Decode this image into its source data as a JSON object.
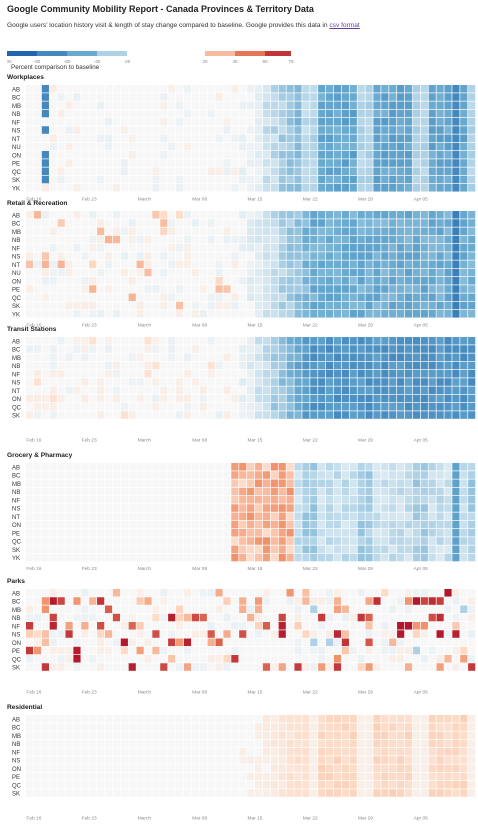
{
  "header": {
    "title": "Google Community Mobility Report - Canada Provinces & Territory Data",
    "subtitle_text": "Google users' location history visit & length of stay change compared to baseline. Google provides this data in ",
    "subtitle_link": "csv format"
  },
  "legend": {
    "title": "Percent comparison to baseline",
    "ticks": [
      "-100",
      "-80",
      "-60",
      "-40",
      "-20",
      "20",
      "40",
      "60",
      "75"
    ],
    "colors": {
      "neg_strong": "#2166ac",
      "neg_mid": "#67a9cf",
      "neg_light": "#d1e5f0",
      "neutral": "#f7f7f7",
      "pos_light": "#fddbc7",
      "pos_mid": "#ef8a62",
      "pos_strong": "#b2182b"
    }
  },
  "chart_data": [
    {
      "type": "heatmap",
      "title": "Workplaces",
      "rows": [
        "AB",
        "BC",
        "MB",
        "NB",
        "NF",
        "NS",
        "NT",
        "NU",
        "ON",
        "PE",
        "QC",
        "SK",
        "YK"
      ],
      "x_ticks": [
        "Feb 16",
        "Feb 23",
        "March",
        "Mar 08",
        "Mar 15",
        "Mar 22",
        "Mar 29",
        "Apr 05"
      ],
      "x_range": [
        "Feb 15",
        "Apr 11"
      ],
      "value_range": [
        -100,
        75
      ],
      "pattern": "near 0 until about Mar 12, then declining to roughly -40 to -60 after Mar 22; weekend holiday cells near -70"
    },
    {
      "type": "heatmap",
      "title": "Retail & Recreation",
      "rows": [
        "AB",
        "BC",
        "MB",
        "NB",
        "NF",
        "NS",
        "NT",
        "NU",
        "ON",
        "PE",
        "QC",
        "SK",
        "YK"
      ],
      "x_ticks": [
        "Feb 16",
        "Feb 23",
        "March",
        "Mar 08",
        "Mar 15",
        "Mar 22",
        "Mar 29",
        "Apr 05"
      ],
      "x_range": [
        "Feb 15",
        "Apr 11"
      ],
      "value_range": [
        -100,
        75
      ],
      "pattern": "near 0 until mid March, then -30 to -60 after Mar 20"
    },
    {
      "type": "heatmap",
      "title": "Transit Stations",
      "rows": [
        "AB",
        "BC",
        "MB",
        "NB",
        "NF",
        "NS",
        "NT",
        "ON",
        "QC",
        "SK"
      ],
      "x_ticks": [
        "Feb 16",
        "Feb 23",
        "March",
        "Mar 08",
        "Mar 15",
        "Mar 22",
        "Mar 29",
        "Apr 05"
      ],
      "x_range": [
        "Feb 15",
        "Apr 11"
      ],
      "value_range": [
        -100,
        75
      ],
      "pattern": "near 0 until mid March, then -50 to -75 after Mar 20"
    },
    {
      "type": "heatmap",
      "title": "Grocery & Pharmacy",
      "rows": [
        "AB",
        "BC",
        "MB",
        "NB",
        "NF",
        "NS",
        "NT",
        "ON",
        "PE",
        "QC",
        "SK",
        "YK"
      ],
      "x_ticks": [
        "Feb 16",
        "Feb 23",
        "March",
        "Mar 08",
        "Mar 15",
        "Mar 22",
        "Mar 29",
        "Apr 05"
      ],
      "x_range": [
        "Feb 15",
        "Apr 11"
      ],
      "value_range": [
        -100,
        75
      ],
      "pattern": "near 0, rising +20 to +40 around Mar 13-18, then -10 to -30 afterwards"
    },
    {
      "type": "heatmap",
      "title": "Parks",
      "rows": [
        "AB",
        "BC",
        "MB",
        "NB",
        "NF",
        "NS",
        "ON",
        "PE",
        "QC",
        "SK"
      ],
      "x_ticks": [
        "Feb 16",
        "Feb 23",
        "March",
        "Mar 08",
        "Mar 15",
        "Mar 22",
        "Mar 29",
        "Apr 05"
      ],
      "x_range": [
        "Feb 15",
        "Apr 11"
      ],
      "value_range": [
        -100,
        75
      ],
      "pattern": "highly variable; strong positive cells (+60 to +75) for BC, NB, NF, NS scattered across the period"
    },
    {
      "type": "heatmap",
      "title": "Residential",
      "rows": [
        "AB",
        "BC",
        "MB",
        "NB",
        "NF",
        "NS",
        "ON",
        "PE",
        "QC",
        "SK"
      ],
      "x_ticks": [
        "Feb 16",
        "Feb 23",
        "March",
        "Mar 08",
        "Mar 15",
        "Mar 22",
        "Mar 29",
        "Apr 05"
      ],
      "x_range": [
        "Feb 15",
        "Apr 11"
      ],
      "value_range": [
        -100,
        75
      ],
      "pattern": "near 0 until Mar 20, then +10 to +25 on weekdays after Mar 22"
    }
  ]
}
